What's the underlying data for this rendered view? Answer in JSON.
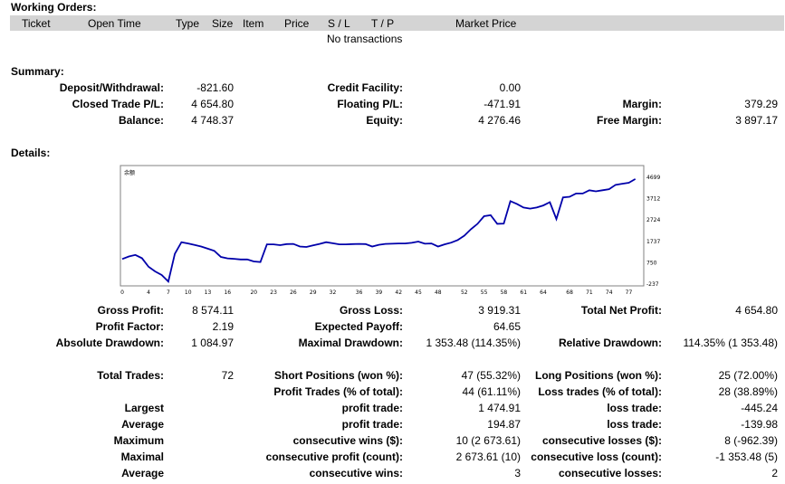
{
  "working_orders": {
    "title": "Working Orders:",
    "columns": [
      "Ticket",
      "Open Time",
      "Type",
      "Size",
      "Item",
      "Price",
      "S / L",
      "T / P",
      "Market Price"
    ],
    "empty_text": "No transactions"
  },
  "summary": {
    "title": "Summary:",
    "rows": [
      {
        "l1": "Deposit/Withdrawal:",
        "v1": "-821.60",
        "l2": "Credit Facility:",
        "v2": "0.00",
        "l3": "",
        "v3": ""
      },
      {
        "l1": "Closed Trade P/L:",
        "v1": "4 654.80",
        "l2": "Floating P/L:",
        "v2": "-471.91",
        "l3": "Margin:",
        "v3": "379.29"
      },
      {
        "l1": "Balance:",
        "v1": "4 748.37",
        "l2": "Equity:",
        "v2": "4 276.46",
        "l3": "Free Margin:",
        "v3": "3 897.17"
      }
    ]
  },
  "details": {
    "title": "Details:",
    "rows1": [
      {
        "l1": "Gross Profit:",
        "v1": "8 574.11",
        "l2": "Gross Loss:",
        "v2": "3 919.31",
        "l3": "Total Net Profit:",
        "v3": "4 654.80"
      },
      {
        "l1": "Profit Factor:",
        "v1": "2.19",
        "l2": "Expected Payoff:",
        "v2": "64.65",
        "l3": "",
        "v3": ""
      },
      {
        "l1": "Absolute Drawdown:",
        "v1": "1 084.97",
        "l2": "Maximal Drawdown:",
        "v2": "1 353.48 (114.35%)",
        "l3": "Relative Drawdown:",
        "v3": "114.35% (1 353.48)"
      }
    ],
    "rows2": [
      {
        "l1": "Total Trades:",
        "v1": "72",
        "l2": "Short Positions (won %):",
        "v2": "47 (55.32%)",
        "l3": "Long Positions (won %):",
        "v3": "25 (72.00%)"
      },
      {
        "l1": "",
        "v1": "",
        "l2": "Profit Trades (% of total):",
        "v2": "44 (61.11%)",
        "l3": "Loss trades (% of total):",
        "v3": "28 (38.89%)"
      },
      {
        "l1": "Largest",
        "v1": "",
        "l2": "profit trade:",
        "v2": "1 474.91",
        "l3": "loss trade:",
        "v3": "-445.24"
      },
      {
        "l1": "Average",
        "v1": "",
        "l2": "profit trade:",
        "v2": "194.87",
        "l3": "loss trade:",
        "v3": "-139.98"
      },
      {
        "l1": "Maximum",
        "v1": "",
        "l2": "consecutive wins ($):",
        "v2": "10 (2 673.61)",
        "l3": "consecutive losses ($):",
        "v3": "8 (-962.39)"
      },
      {
        "l1": "Maximal",
        "v1": "",
        "l2": "consecutive profit (count):",
        "v2": "2 673.61 (10)",
        "l3": "consecutive loss (count):",
        "v3": "-1 353.48 (5)"
      },
      {
        "l1": "Average",
        "v1": "",
        "l2": "consecutive wins:",
        "v2": "3",
        "l3": "consecutive losses:",
        "v3": "2"
      }
    ]
  },
  "chart_data": {
    "type": "line",
    "title": "余额",
    "line_color": "#0000aa",
    "xlim": [
      0,
      79
    ],
    "ylim": [
      -237,
      4699
    ],
    "x_ticks": [
      0,
      4,
      7,
      10,
      13,
      16,
      20,
      23,
      26,
      29,
      32,
      36,
      39,
      42,
      45,
      48,
      52,
      55,
      58,
      61,
      64,
      68,
      71,
      74,
      77
    ],
    "y_ticks": [
      4699,
      3712,
      2724,
      1737,
      750,
      -237
    ],
    "y_tick_labels": [
      "4699",
      "3712",
      "2724",
      "1737",
      "750",
      "-237"
    ],
    "series": [
      {
        "x": [
          0,
          1,
          2,
          3,
          4,
          5,
          6,
          7,
          8,
          9,
          10,
          11,
          12,
          13,
          14,
          15,
          16,
          17,
          18,
          19,
          20,
          21,
          22,
          23,
          24,
          25,
          26,
          27,
          28,
          29,
          30,
          31,
          32,
          33,
          34,
          35,
          36,
          37,
          38,
          39,
          40,
          41,
          42,
          43,
          44,
          45,
          46,
          47,
          48,
          49,
          50,
          51,
          52,
          53,
          54,
          55,
          56,
          57,
          58,
          59,
          60,
          61,
          62,
          63,
          64,
          65,
          66,
          67,
          68,
          69,
          70,
          71,
          72,
          73,
          74,
          75,
          76,
          77,
          78
        ],
        "y": [
          920,
          1040,
          1110,
          960,
          560,
          350,
          180,
          -120,
          1160,
          1700,
          1640,
          1570,
          1500,
          1400,
          1300,
          1020,
          950,
          930,
          900,
          900,
          810,
          780,
          1600,
          1600,
          1560,
          1610,
          1620,
          1500,
          1480,
          1550,
          1620,
          1700,
          1650,
          1600,
          1600,
          1610,
          1620,
          1610,
          1500,
          1580,
          1620,
          1630,
          1640,
          1640,
          1670,
          1730,
          1630,
          1640,
          1500,
          1600,
          1680,
          1800,
          2000,
          2300,
          2550,
          2900,
          2950,
          2550,
          2560,
          3600,
          3470,
          3300,
          3250,
          3300,
          3400,
          3550,
          2770,
          3770,
          3800,
          3950,
          3950,
          4100,
          4050,
          4100,
          4150,
          4350,
          4400,
          4450,
          4620
        ]
      }
    ]
  }
}
